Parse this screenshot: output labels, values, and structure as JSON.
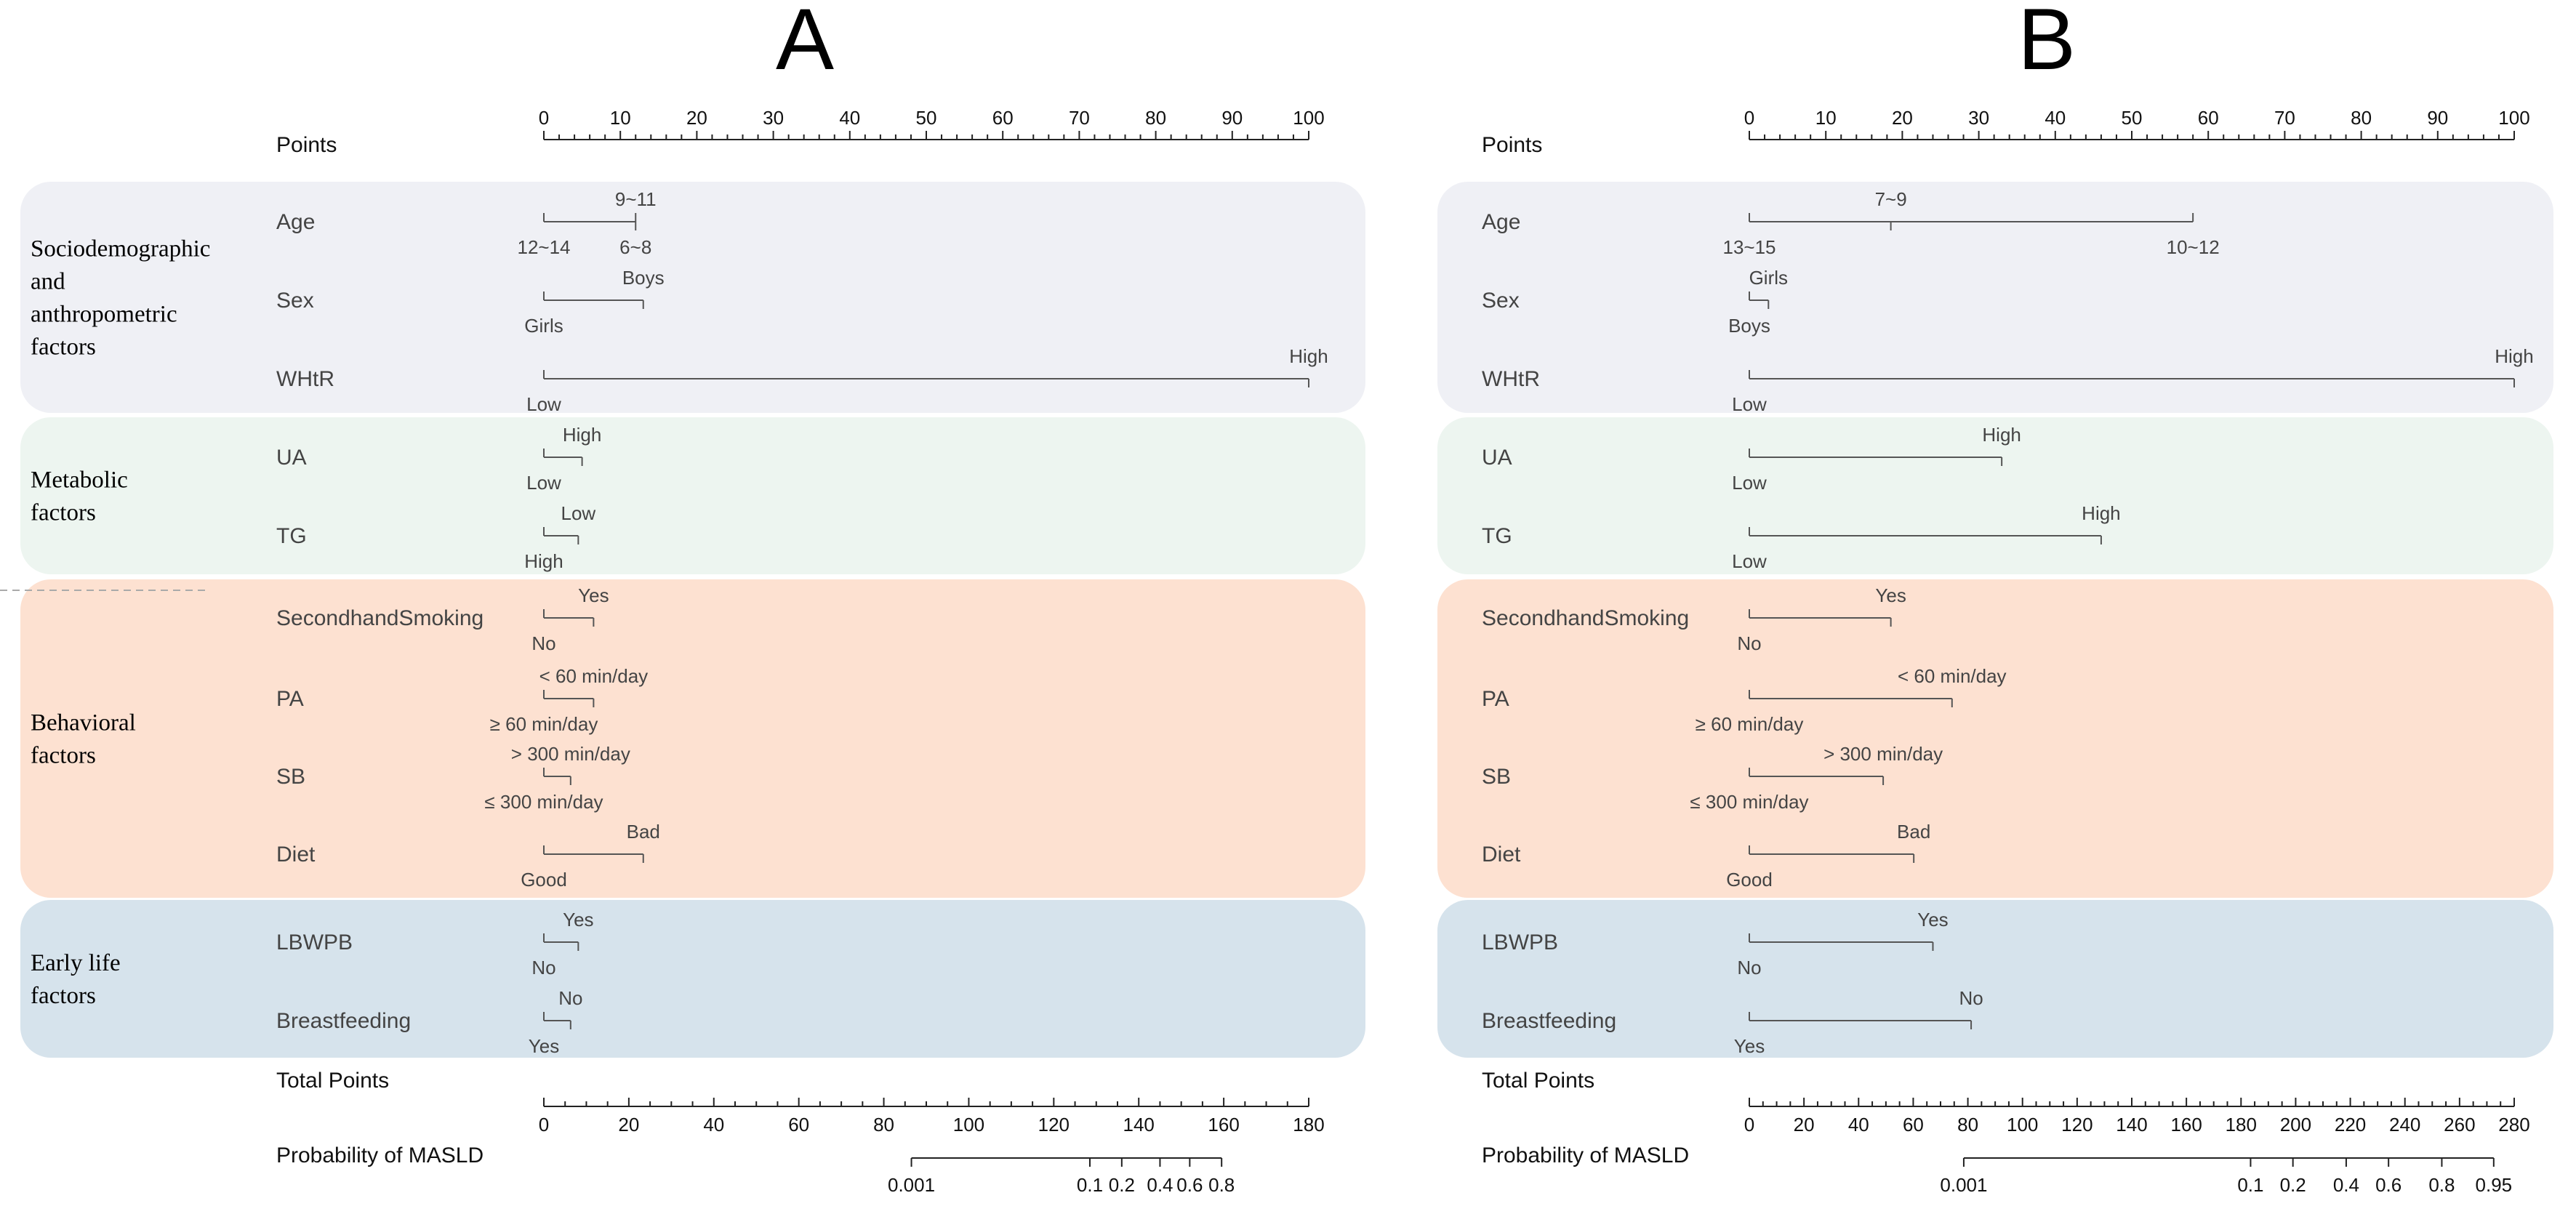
{
  "chart_data": [
    {
      "type": "nomogram",
      "panel": "A",
      "points_label": "Points",
      "points_ticks": [
        0,
        10,
        20,
        30,
        40,
        50,
        60,
        70,
        80,
        90,
        100
      ],
      "groups": [
        {
          "label": "Sociodemographic\nand\nanthropometric\nfactors",
          "color": "#eff0f5"
        },
        {
          "label": "Metabolic\nfactors",
          "color": "#edf5f0"
        },
        {
          "label": "Behavioral\nfactors",
          "color": "#fde1d1"
        },
        {
          "label": "Early life\nfactors",
          "color": "#d6e3ec"
        }
      ],
      "variables": [
        {
          "name": "Age",
          "group": 0,
          "levels": [
            {
              "label": "12~14",
              "points": 0,
              "side": "below"
            },
            {
              "label": "9~11",
              "points": 12,
              "side": "above"
            },
            {
              "label": "6~8",
              "points": 12,
              "side": "below"
            }
          ]
        },
        {
          "name": "Sex",
          "group": 0,
          "levels": [
            {
              "label": "Girls",
              "points": 0,
              "side": "below"
            },
            {
              "label": "Boys",
              "points": 13,
              "side": "above"
            }
          ]
        },
        {
          "name": "WHtR",
          "group": 0,
          "levels": [
            {
              "label": "Low",
              "points": 0,
              "side": "below"
            },
            {
              "label": "High",
              "points": 100,
              "side": "above"
            }
          ]
        },
        {
          "name": "UA",
          "group": 1,
          "levels": [
            {
              "label": "Low",
              "points": 0,
              "side": "below"
            },
            {
              "label": "High",
              "points": 5,
              "side": "above"
            }
          ]
        },
        {
          "name": "TG",
          "group": 1,
          "levels": [
            {
              "label": "High",
              "points": 0,
              "side": "below"
            },
            {
              "label": "Low",
              "points": 4.5,
              "side": "above"
            }
          ]
        },
        {
          "name": "SecondhandSmoking",
          "group": 2,
          "levels": [
            {
              "label": "No",
              "points": 0,
              "side": "below"
            },
            {
              "label": "Yes",
              "points": 6.5,
              "side": "above"
            }
          ]
        },
        {
          "name": "PA",
          "group": 2,
          "levels": [
            {
              "label": "≥ 60 min/day",
              "points": 0,
              "side": "below"
            },
            {
              "label": "< 60 min/day",
              "points": 6.5,
              "side": "above"
            }
          ]
        },
        {
          "name": "SB",
          "group": 2,
          "levels": [
            {
              "label": "≤ 300 min/day",
              "points": 0,
              "side": "below"
            },
            {
              "label": "> 300 min/day",
              "points": 3.5,
              "side": "above"
            }
          ]
        },
        {
          "name": "Diet",
          "group": 2,
          "levels": [
            {
              "label": "Good",
              "points": 0,
              "side": "below"
            },
            {
              "label": "Bad",
              "points": 13,
              "side": "above"
            }
          ]
        },
        {
          "name": "LBWPB",
          "group": 3,
          "levels": [
            {
              "label": "No",
              "points": 0,
              "side": "below"
            },
            {
              "label": "Yes",
              "points": 4.5,
              "side": "above"
            }
          ]
        },
        {
          "name": "Breastfeeding",
          "group": 3,
          "levels": [
            {
              "label": "Yes",
              "points": 0,
              "side": "below"
            },
            {
              "label": "No",
              "points": 3.5,
              "side": "above"
            }
          ]
        }
      ],
      "total_points_label": "Total Points",
      "total_points_ticks": [
        0,
        20,
        40,
        60,
        80,
        100,
        120,
        140,
        160,
        180
      ],
      "total_points_max": 180,
      "probability_label": "Probability of MASLD",
      "probability_ticks": [
        {
          "label": "0.001",
          "total_points": 86.5
        },
        {
          "label": "0.1",
          "total_points": 128.5
        },
        {
          "label": "0.2",
          "total_points": 136
        },
        {
          "label": "0.4",
          "total_points": 145
        },
        {
          "label": "0.6",
          "total_points": 152
        },
        {
          "label": "0.8",
          "total_points": 159.5
        }
      ]
    },
    {
      "type": "nomogram",
      "panel": "B",
      "points_label": "Points",
      "points_ticks": [
        0,
        10,
        20,
        30,
        40,
        50,
        60,
        70,
        80,
        90,
        100
      ],
      "groups": [
        {
          "label": "",
          "color": "#eff0f5"
        },
        {
          "label": "",
          "color": "#edf5f0"
        },
        {
          "label": "",
          "color": "#fde1d1"
        },
        {
          "label": "",
          "color": "#d6e3ec"
        }
      ],
      "variables": [
        {
          "name": "Age",
          "group": 0,
          "levels": [
            {
              "label": "13~15",
              "points": 0,
              "side": "below"
            },
            {
              "label": "7~9",
              "points": 18.5,
              "side": "above"
            },
            {
              "label": "10~12",
              "points": 58,
              "side": "below"
            }
          ]
        },
        {
          "name": "Sex",
          "group": 0,
          "levels": [
            {
              "label": "Boys",
              "points": 0,
              "side": "below"
            },
            {
              "label": "Girls",
              "points": 2.5,
              "side": "above"
            }
          ]
        },
        {
          "name": "WHtR",
          "group": 0,
          "levels": [
            {
              "label": "Low",
              "points": 0,
              "side": "below"
            },
            {
              "label": "High",
              "points": 100,
              "side": "above"
            }
          ]
        },
        {
          "name": "UA",
          "group": 1,
          "levels": [
            {
              "label": "Low",
              "points": 0,
              "side": "below"
            },
            {
              "label": "High",
              "points": 33,
              "side": "above"
            }
          ]
        },
        {
          "name": "TG",
          "group": 1,
          "levels": [
            {
              "label": "Low",
              "points": 0,
              "side": "below"
            },
            {
              "label": "High",
              "points": 46,
              "side": "above"
            }
          ]
        },
        {
          "name": "SecondhandSmoking",
          "group": 2,
          "levels": [
            {
              "label": "No",
              "points": 0,
              "side": "below"
            },
            {
              "label": "Yes",
              "points": 18.5,
              "side": "above"
            }
          ]
        },
        {
          "name": "PA",
          "group": 2,
          "levels": [
            {
              "label": "≥ 60 min/day",
              "points": 0,
              "side": "below"
            },
            {
              "label": "< 60 min/day",
              "points": 26.5,
              "side": "above"
            }
          ]
        },
        {
          "name": "SB",
          "group": 2,
          "levels": [
            {
              "label": "≤ 300 min/day",
              "points": 0,
              "side": "below"
            },
            {
              "label": "> 300 min/day",
              "points": 17.5,
              "side": "above"
            }
          ]
        },
        {
          "name": "Diet",
          "group": 2,
          "levels": [
            {
              "label": "Good",
              "points": 0,
              "side": "below"
            },
            {
              "label": "Bad",
              "points": 21.5,
              "side": "above"
            }
          ]
        },
        {
          "name": "LBWPB",
          "group": 3,
          "levels": [
            {
              "label": "No",
              "points": 0,
              "side": "below"
            },
            {
              "label": "Yes",
              "points": 24,
              "side": "above"
            }
          ]
        },
        {
          "name": "Breastfeeding",
          "group": 3,
          "levels": [
            {
              "label": "Yes",
              "points": 0,
              "side": "below"
            },
            {
              "label": "No",
              "points": 29,
              "side": "above"
            }
          ]
        }
      ],
      "total_points_label": "Total Points",
      "total_points_ticks": [
        0,
        20,
        40,
        60,
        80,
        100,
        120,
        140,
        160,
        180,
        200,
        220,
        240,
        260,
        280
      ],
      "total_points_max": 280,
      "probability_label": "Probability of MASLD",
      "probability_ticks": [
        {
          "label": "0.001",
          "total_points": 78.5
        },
        {
          "label": "0.1",
          "total_points": 183.5
        },
        {
          "label": "0.2",
          "total_points": 199
        },
        {
          "label": "0.4",
          "total_points": 218.5
        },
        {
          "label": "0.6",
          "total_points": 234
        },
        {
          "label": "0.8",
          "total_points": 253.5
        },
        {
          "label": "0.95",
          "total_points": 272.5
        }
      ]
    }
  ]
}
